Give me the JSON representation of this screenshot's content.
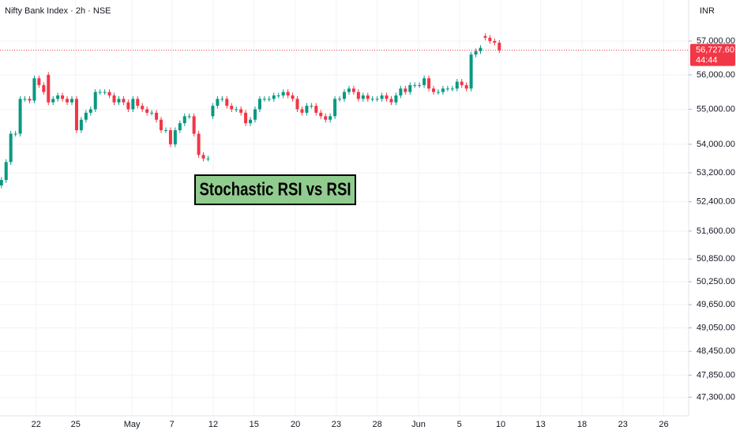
{
  "chart_data": {
    "type": "candlestick",
    "title": "Nifty Bank Index · 2h · NSE",
    "currency": "INR",
    "annotation": "Stochastic RSI vs RSI",
    "current_price": {
      "value": 56727.6,
      "label": "56,727.60"
    },
    "countdown": "44:44",
    "up_color": "#089981",
    "down_color": "#f23645",
    "annotation_color": "#90cc8e",
    "log_scale": true,
    "grid": true,
    "xlim": [
      -0.3,
      146.3
    ],
    "ylim": [
      46840,
      58240
    ],
    "xticks": [
      {
        "value": 7.4,
        "label": "22"
      },
      {
        "value": 15.8,
        "label": "25"
      },
      {
        "value": 27.8,
        "label": "May"
      },
      {
        "value": 36.3,
        "label": "7"
      },
      {
        "value": 45.1,
        "label": "12"
      },
      {
        "value": 53.8,
        "label": "15"
      },
      {
        "value": 62.6,
        "label": "20"
      },
      {
        "value": 71.3,
        "label": "23"
      },
      {
        "value": 80.0,
        "label": "28"
      },
      {
        "value": 88.8,
        "label": "Jun"
      },
      {
        "value": 97.5,
        "label": "5"
      },
      {
        "value": 106.3,
        "label": "10"
      },
      {
        "value": 114.8,
        "label": "13"
      },
      {
        "value": 123.6,
        "label": "18"
      },
      {
        "value": 132.3,
        "label": "23"
      },
      {
        "value": 141.0,
        "label": "26"
      }
    ],
    "yticks": [
      {
        "value": 57000,
        "label": "57,000.00"
      },
      {
        "value": 56000,
        "label": "56,000.00"
      },
      {
        "value": 55000,
        "label": "55,000.00"
      },
      {
        "value": 54000,
        "label": "54,000.00"
      },
      {
        "value": 53200,
        "label": "53,200.00"
      },
      {
        "value": 52400,
        "label": "52,400.00"
      },
      {
        "value": 51600,
        "label": "51,600.00"
      },
      {
        "value": 50850,
        "label": "50,850.00"
      },
      {
        "value": 50250,
        "label": "50,250.00"
      },
      {
        "value": 49650,
        "label": "49,650.00"
      },
      {
        "value": 49050,
        "label": "49,050.00"
      },
      {
        "value": 48450,
        "label": "48,450.00"
      },
      {
        "value": 47850,
        "label": "47,850.00"
      },
      {
        "value": 47300,
        "label": "47,300.00"
      }
    ],
    "candles": {
      "open": [
        52850,
        53000,
        53500,
        54300,
        54300,
        55300,
        55300,
        55250,
        55900,
        55700,
        56000,
        55200,
        55300,
        55400,
        55300,
        55200,
        55300,
        54400,
        54700,
        54900,
        55000,
        55500,
        55500,
        55500,
        55400,
        55200,
        55300,
        55200,
        55000,
        55300,
        55100,
        55000,
        54900,
        54900,
        54700,
        54400,
        54400,
        54000,
        54400,
        54600,
        54800,
        54800,
        54300,
        53700,
        53600,
        54800,
        55100,
        55300,
        55300,
        55100,
        55000,
        55000,
        54900,
        54600,
        54700,
        55000,
        55300,
        55300,
        55300,
        55400,
        55400,
        55500,
        55400,
        55300,
        55000,
        54900,
        55100,
        55100,
        54900,
        54800,
        54700,
        54800,
        55300,
        55300,
        55500,
        55600,
        55500,
        55300,
        55400,
        55300,
        55300,
        55300,
        55400,
        55300,
        55200,
        55400,
        55600,
        55500,
        55700,
        55700,
        55700,
        55900,
        55600,
        55500,
        55500,
        55600,
        55600,
        55600,
        55800,
        55700,
        55600,
        56600,
        56700,
        57150,
        57100,
        57000,
        56950
      ],
      "high": [
        53080,
        53580,
        54380,
        54380,
        55380,
        55380,
        55380,
        55980,
        55980,
        55780,
        56080,
        55380,
        55480,
        55480,
        55380,
        55380,
        55380,
        54780,
        54980,
        55080,
        55580,
        55580,
        55580,
        55580,
        55480,
        55380,
        55380,
        55280,
        55380,
        55380,
        55180,
        55080,
        54980,
        54980,
        54780,
        54480,
        54480,
        54480,
        54680,
        54880,
        54880,
        54880,
        54380,
        53780,
        53680,
        55180,
        55380,
        55380,
        55380,
        55180,
        55080,
        55080,
        54980,
        54780,
        55080,
        55380,
        55380,
        55380,
        55480,
        55480,
        55580,
        55580,
        55480,
        55380,
        55080,
        55180,
        55180,
        55180,
        54980,
        54880,
        54880,
        55380,
        55380,
        55580,
        55680,
        55680,
        55580,
        55480,
        55480,
        55380,
        55380,
        55480,
        55480,
        55380,
        55480,
        55680,
        55680,
        55780,
        55780,
        55780,
        55980,
        55980,
        55680,
        55580,
        55680,
        55680,
        55680,
        55880,
        55880,
        55780,
        56680,
        56780,
        56880,
        57230,
        57180,
        57080,
        57030
      ],
      "low": [
        52770,
        52920,
        53420,
        54220,
        54220,
        55220,
        55170,
        55170,
        55620,
        55420,
        55120,
        55120,
        55220,
        55220,
        55120,
        55120,
        54320,
        54320,
        54620,
        54820,
        54920,
        55420,
        55420,
        55320,
        55120,
        55120,
        55120,
        54920,
        54920,
        55020,
        54920,
        54820,
        54820,
        54620,
        54320,
        54320,
        53920,
        53920,
        54320,
        54520,
        54720,
        54220,
        53620,
        53520,
        53520,
        54720,
        55020,
        55220,
        55020,
        54920,
        54920,
        54820,
        54520,
        54520,
        54620,
        54920,
        55220,
        55220,
        55220,
        55320,
        55320,
        55320,
        55220,
        54920,
        54820,
        54820,
        55020,
        54820,
        54720,
        54620,
        54620,
        54720,
        55220,
        55220,
        55420,
        55420,
        55220,
        55220,
        55220,
        55220,
        55220,
        55220,
        55220,
        55120,
        55120,
        55320,
        55420,
        55420,
        55620,
        55620,
        55620,
        55520,
        55420,
        55420,
        55420,
        55520,
        55520,
        55520,
        55620,
        55520,
        55520,
        56520,
        56620,
        57020,
        56920,
        56870,
        56647.6
      ],
      "close": [
        53000,
        53500,
        54300,
        54300,
        55300,
        55300,
        55250,
        55900,
        55700,
        55500,
        55200,
        55300,
        55400,
        55300,
        55200,
        55300,
        54400,
        54700,
        54900,
        55000,
        55500,
        55500,
        55500,
        55400,
        55200,
        55300,
        55200,
        55000,
        55300,
        55100,
        55000,
        54900,
        54900,
        54700,
        54400,
        54400,
        54000,
        54400,
        54600,
        54800,
        54800,
        54300,
        53700,
        53600,
        53600,
        55100,
        55300,
        55300,
        55100,
        55000,
        55000,
        54900,
        54600,
        54700,
        55000,
        55300,
        55300,
        55300,
        55400,
        55400,
        55500,
        55400,
        55300,
        55000,
        54900,
        55100,
        55100,
        54900,
        54800,
        54700,
        54800,
        55300,
        55300,
        55500,
        55600,
        55500,
        55300,
        55400,
        55300,
        55300,
        55300,
        55400,
        55300,
        55200,
        55400,
        55600,
        55500,
        55700,
        55700,
        55700,
        55900,
        55600,
        55500,
        55500,
        55600,
        55600,
        55600,
        55800,
        55700,
        55600,
        56600,
        56700,
        56800,
        57100,
        57000,
        56950,
        56727.6
      ]
    }
  }
}
